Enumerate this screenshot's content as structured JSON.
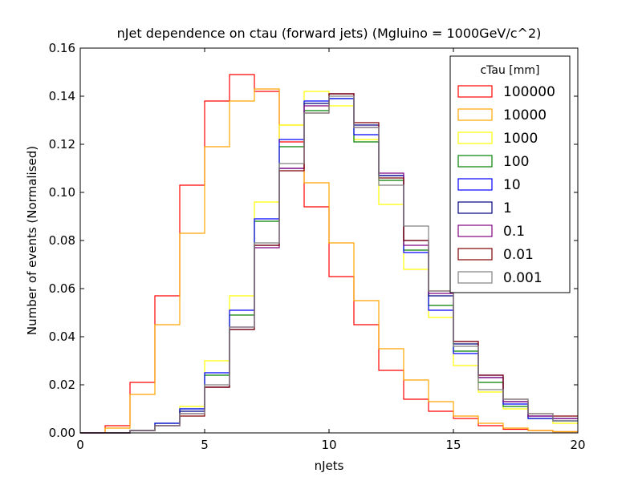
{
  "chart_data": {
    "type": "line",
    "title": "nJet dependence on ctau (forward jets) (Mgluino = 1000GeV/c^2)",
    "xlabel": "nJets",
    "ylabel": "Number of events (Normalised)",
    "xlim": [
      0,
      20
    ],
    "ylim": [
      0,
      0.16
    ],
    "xticks": [
      0,
      5,
      10,
      15,
      20
    ],
    "yticks": [
      0.0,
      0.02,
      0.04,
      0.06,
      0.08,
      0.1,
      0.12,
      0.14,
      0.16
    ],
    "xtick_labels": [
      "0",
      "5",
      "10",
      "15",
      "20"
    ],
    "ytick_labels": [
      "0.00",
      "0.02",
      "0.04",
      "0.06",
      "0.08",
      "0.10",
      "0.12",
      "0.14",
      "0.16"
    ],
    "grid": false,
    "legend_title": "cTau [mm]",
    "legend_position": "top-right",
    "bin_edges": [
      0,
      1,
      2,
      3,
      4,
      5,
      6,
      7,
      8,
      9,
      10,
      11,
      12,
      13,
      14,
      15,
      16,
      17,
      18,
      19,
      20
    ],
    "series": [
      {
        "name": "100000",
        "color": "#ff0000",
        "values": [
          0.0,
          0.003,
          0.021,
          0.057,
          0.103,
          0.138,
          0.149,
          0.142,
          0.121,
          0.094,
          0.065,
          0.045,
          0.026,
          0.014,
          0.009,
          0.006,
          0.003,
          0.0015,
          0.001,
          0.0005
        ]
      },
      {
        "name": "10000",
        "color": "#ffa500",
        "values": [
          0.0,
          0.002,
          0.016,
          0.045,
          0.083,
          0.119,
          0.138,
          0.143,
          0.128,
          0.104,
          0.079,
          0.055,
          0.035,
          0.022,
          0.013,
          0.007,
          0.004,
          0.002,
          0.001,
          0.0005
        ]
      },
      {
        "name": "1000",
        "color": "#ffff00",
        "values": [
          0.0,
          0.0,
          0.001,
          0.004,
          0.011,
          0.03,
          0.057,
          0.096,
          0.128,
          0.142,
          0.136,
          0.122,
          0.095,
          0.068,
          0.048,
          0.028,
          0.017,
          0.01,
          0.006,
          0.004
        ]
      },
      {
        "name": "100",
        "color": "#008000",
        "values": [
          0.0,
          0.0,
          0.001,
          0.004,
          0.01,
          0.024,
          0.049,
          0.088,
          0.119,
          0.134,
          0.139,
          0.121,
          0.105,
          0.076,
          0.053,
          0.034,
          0.021,
          0.011,
          0.006,
          0.005
        ]
      },
      {
        "name": "10",
        "color": "#0000ff",
        "values": [
          0.0,
          0.0,
          0.001,
          0.004,
          0.01,
          0.025,
          0.051,
          0.089,
          0.122,
          0.138,
          0.139,
          0.124,
          0.107,
          0.075,
          0.051,
          0.033,
          0.024,
          0.012,
          0.006,
          0.005
        ]
      },
      {
        "name": "1",
        "color": "#000080",
        "values": [
          0.0,
          0.0,
          0.001,
          0.003,
          0.009,
          0.019,
          0.043,
          0.078,
          0.11,
          0.137,
          0.141,
          0.128,
          0.107,
          0.08,
          0.057,
          0.037,
          0.023,
          0.013,
          0.007,
          0.006
        ]
      },
      {
        "name": "0.1",
        "color": "#800080",
        "values": [
          0.0,
          0.0,
          0.001,
          0.003,
          0.008,
          0.019,
          0.044,
          0.077,
          0.11,
          0.136,
          0.141,
          0.127,
          0.108,
          0.078,
          0.058,
          0.038,
          0.023,
          0.013,
          0.007,
          0.006
        ]
      },
      {
        "name": "0.01",
        "color": "#800000",
        "values": [
          0.0,
          0.0,
          0.001,
          0.003,
          0.007,
          0.019,
          0.043,
          0.078,
          0.109,
          0.133,
          0.141,
          0.129,
          0.106,
          0.08,
          0.059,
          0.038,
          0.024,
          0.014,
          0.008,
          0.007
        ]
      },
      {
        "name": "0.001",
        "color": "#808080",
        "values": [
          0.0,
          0.0,
          0.001,
          0.003,
          0.008,
          0.02,
          0.044,
          0.079,
          0.112,
          0.133,
          0.14,
          0.127,
          0.103,
          0.086,
          0.059,
          0.036,
          0.018,
          0.014,
          0.008,
          0.005
        ]
      }
    ]
  }
}
